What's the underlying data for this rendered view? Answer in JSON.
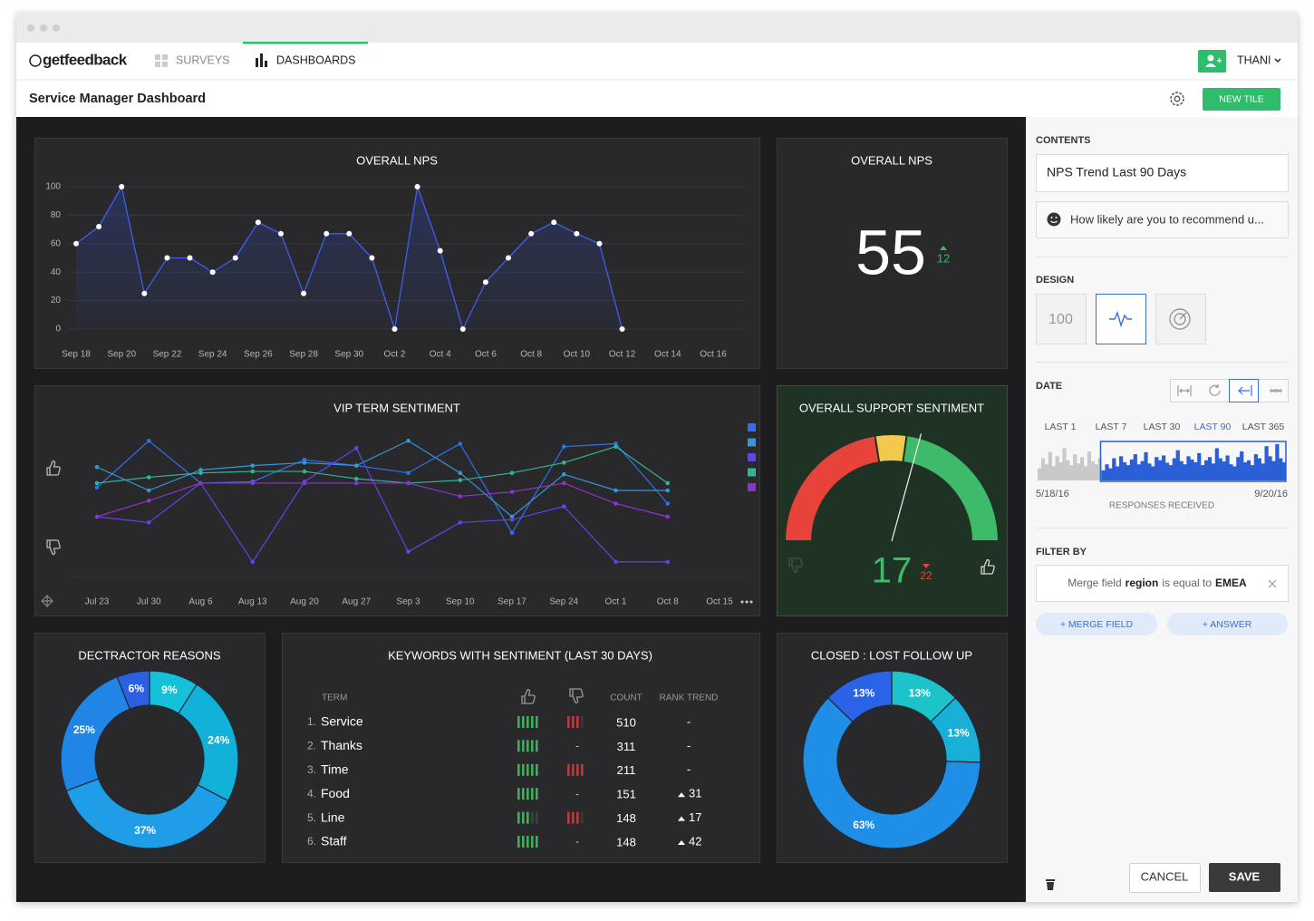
{
  "window": {
    "logo": "getfeedback",
    "nav": [
      "SURVEYS",
      "DASHBOARDS"
    ],
    "user": "THANI",
    "page_title": "Service Manager Dashboard",
    "new_tile": "NEW TILE"
  },
  "chart_data": [
    {
      "type": "line",
      "title": "OVERALL NPS",
      "categories": [
        "Sep 18",
        null,
        "Sep 20",
        null,
        "Sep 22",
        null,
        "Sep 24",
        null,
        "Sep 26",
        null,
        "Sep 28",
        null,
        "Sep 30",
        null,
        "Oct 2",
        null,
        "Oct 4",
        null,
        "Oct 6",
        null,
        "Oct 8",
        null,
        "Oct 10",
        null,
        "Oct 12",
        null,
        "Oct 14",
        null,
        "Oct 16"
      ],
      "values": [
        60,
        72,
        100,
        25,
        50,
        50,
        40,
        50,
        75,
        67,
        25,
        67,
        67,
        50,
        0,
        100,
        55,
        0,
        33,
        50,
        67,
        75,
        67,
        60,
        0,
        null,
        null,
        null,
        null
      ],
      "color": "#3d5ef0",
      "ylim": [
        0,
        100
      ],
      "yticks": [
        0,
        20,
        40,
        60,
        80,
        100
      ],
      "grid": true
    },
    {
      "type": "kpi",
      "title": "OVERALL NPS",
      "value": 55,
      "change": 12,
      "change_direction": "up"
    },
    {
      "type": "line",
      "title": "VIP TERM SENTIMENT",
      "categories": [
        "Jul 23",
        "Jul 30",
        "Aug 6",
        "Aug 13",
        "Aug 20",
        "Aug 27",
        "Sep 3",
        "Sep 10",
        "Sep 17",
        "Sep 24",
        "Oct 1",
        "Oct 8",
        "Oct 15"
      ],
      "series": [
        {
          "color": "#3070ee",
          "values": [
            61,
            93,
            64,
            65,
            80,
            76,
            71,
            91,
            30,
            89,
            91,
            50,
            null
          ]
        },
        {
          "color": "#3795d8",
          "values": [
            75,
            59,
            73,
            76,
            78,
            76,
            93,
            71,
            41,
            70,
            59,
            59,
            null
          ]
        },
        {
          "color": "#6244e6",
          "values": [
            41,
            37,
            64,
            10,
            65,
            88,
            17,
            37,
            39,
            48,
            10,
            10,
            null
          ]
        },
        {
          "color": "#2fb596",
          "values": [
            64,
            68,
            71,
            72,
            72,
            67,
            64,
            66,
            71,
            78,
            89,
            64,
            null
          ]
        },
        {
          "color": "#8e32cc",
          "values": [
            41,
            52,
            64,
            64,
            64,
            64,
            64,
            55,
            58,
            64,
            50,
            41,
            null
          ]
        }
      ],
      "ylim": [
        0,
        100
      ]
    },
    {
      "type": "gauge",
      "title": "OVERALL SUPPORT SENTIMENT",
      "value": 17,
      "change": 22,
      "change_direction": "down",
      "ylim": [
        -100,
        100
      ],
      "bands": [
        {
          "to": -10,
          "color": "#e8433b"
        },
        {
          "to": 9,
          "color": "#f2c94c"
        },
        {
          "to": 100,
          "color": "#3dbb6a"
        }
      ]
    },
    {
      "type": "donut",
      "title": "DECTRACTOR REASONS",
      "values": [
        9,
        24,
        37,
        25,
        6
      ],
      "value_labels": [
        "9%",
        "24%",
        "37%",
        "25%",
        "6%"
      ],
      "colors": [
        "#14c1d8",
        "#12b1d9",
        "#1f9de6",
        "#1f86e6",
        "#2b5fe4"
      ]
    },
    {
      "type": "donut",
      "title": "CLOSED : LOST FOLLOW UP",
      "values": [
        13,
        13,
        63,
        13
      ],
      "value_labels": [
        "13%",
        "13%",
        "63%",
        "13%"
      ],
      "colors": [
        "#1cc4c9",
        "#19b0d8",
        "#1f8ee6",
        "#2a63e6"
      ]
    }
  ],
  "keywords": {
    "title": "KEYWORDS WITH SENTIMENT (LAST 30 DAYS)",
    "columns": [
      "TERM",
      "COUNT",
      "RANK TREND"
    ],
    "rows": [
      {
        "rank": "1.",
        "term": "Service",
        "positive": 5,
        "negative": 3,
        "count": 510,
        "rank_trend": "-"
      },
      {
        "rank": "2.",
        "term": "Thanks",
        "positive": 5,
        "negative": "-",
        "count": 311,
        "rank_trend": "-"
      },
      {
        "rank": "3.",
        "term": "Time",
        "positive": 5,
        "negative": 4,
        "count": 211,
        "rank_trend": "-"
      },
      {
        "rank": "4.",
        "term": "Food",
        "positive": 5,
        "negative": "-",
        "count": 151,
        "rank_trend": 31
      },
      {
        "rank": "5.",
        "term": "Line",
        "positive": 3,
        "negative": 3,
        "count": 148,
        "rank_trend": 17
      },
      {
        "rank": "6.",
        "term": "Staff",
        "positive": 5,
        "negative": "-",
        "count": 148,
        "rank_trend": 42
      }
    ]
  },
  "editor": {
    "contents_label": "CONTENTS",
    "tile_name": "NPS Trend Last 90 Days",
    "question": "How likely are you to recommend u...",
    "design_label": "DESIGN",
    "design_number_option": "100",
    "selected_design_index": 1,
    "date_label": "DATE",
    "date_ranges": [
      "LAST 1",
      "LAST 7",
      "LAST 30",
      "LAST 90",
      "LAST 365"
    ],
    "selected_range_index": 3,
    "responses_before": [
      30,
      55,
      40,
      70,
      35,
      60,
      45,
      80,
      50,
      38,
      65,
      42,
      58,
      35,
      72,
      48,
      40,
      55
    ],
    "responses_in_range": [
      25,
      40,
      30,
      55,
      35,
      60,
      45,
      38,
      52,
      65,
      40,
      48,
      70,
      42,
      35,
      58,
      50,
      62,
      44,
      38,
      55,
      75,
      48,
      40,
      60,
      52,
      45,
      68,
      38,
      50,
      58,
      42,
      80,
      55,
      47,
      62,
      40,
      35,
      58,
      72,
      45,
      50,
      38,
      65,
      55,
      42,
      85,
      60,
      48,
      90,
      55,
      45
    ],
    "date_start": "5/18/16",
    "date_end": "9/20/16",
    "responses_label": "RESPONSES RECEIVED",
    "filter_label": "FILTER BY",
    "filter": {
      "prefix": "Merge field",
      "field": "region",
      "operator": "is equal to",
      "value": "EMEA"
    },
    "add_buttons": [
      "+ MERGE FIELD",
      "+ ANSWER"
    ],
    "cancel": "CANCEL",
    "save": "SAVE"
  }
}
